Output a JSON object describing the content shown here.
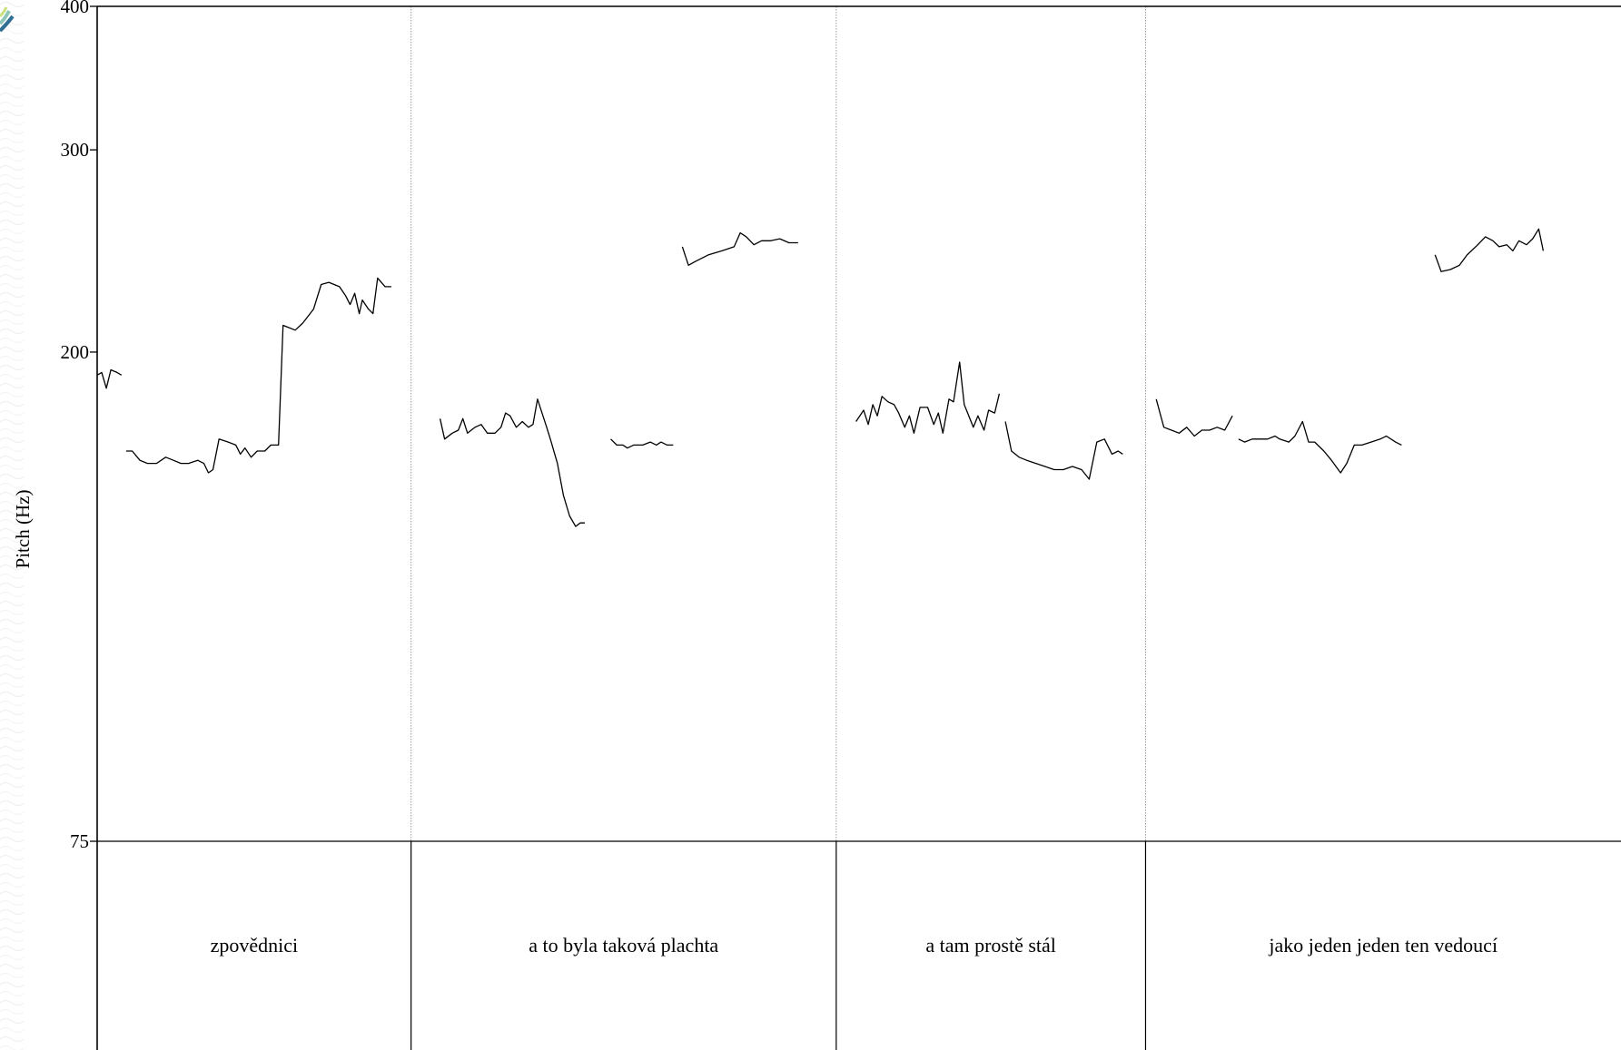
{
  "chart_data": {
    "type": "line",
    "ylabel": "Pitch (Hz)",
    "ylim": [
      75,
      400
    ],
    "yticks": [
      75,
      200,
      300,
      400
    ],
    "ytick_labels": [
      "75",
      "200",
      "300",
      "400"
    ],
    "xlim": [
      0,
      100
    ],
    "intervals": [
      {
        "label": "zpovědnici",
        "start": 0.0,
        "end": 20.6
      },
      {
        "label": "a to byla taková plachta",
        "start": 20.6,
        "end": 48.5
      },
      {
        "label": "a tam prostě stál",
        "start": 48.5,
        "end": 68.8
      },
      {
        "label": "jako jeden jeden ten vedoucí",
        "start": 68.8,
        "end": 100.0
      }
    ],
    "series": [
      {
        "values": [
          [
            0.0,
            191
          ],
          [
            0.3,
            192
          ],
          [
            0.6,
            186
          ],
          [
            0.9,
            193
          ],
          [
            1.3,
            192
          ],
          [
            1.6,
            191
          ]
        ]
      },
      {
        "values": [
          [
            1.9,
            164
          ],
          [
            2.3,
            164
          ],
          [
            2.8,
            161
          ],
          [
            3.3,
            160
          ],
          [
            3.9,
            160
          ],
          [
            4.5,
            162
          ],
          [
            5.0,
            161
          ],
          [
            5.5,
            160
          ],
          [
            6.0,
            160
          ],
          [
            6.6,
            161
          ],
          [
            7.0,
            160
          ],
          [
            7.3,
            157
          ],
          [
            7.6,
            158
          ],
          [
            8.0,
            168
          ],
          [
            8.6,
            167
          ],
          [
            9.1,
            166
          ],
          [
            9.4,
            163
          ],
          [
            9.7,
            165
          ],
          [
            10.1,
            162
          ],
          [
            10.5,
            164
          ],
          [
            11.0,
            164
          ],
          [
            11.4,
            166
          ],
          [
            11.9,
            166
          ],
          [
            12.2,
            211
          ],
          [
            12.6,
            210
          ],
          [
            13.0,
            209
          ],
          [
            13.5,
            212
          ],
          [
            14.2,
            218
          ],
          [
            14.7,
            229
          ],
          [
            15.2,
            230
          ],
          [
            15.9,
            228
          ],
          [
            16.3,
            224
          ],
          [
            16.6,
            220
          ],
          [
            16.9,
            225
          ],
          [
            17.2,
            216
          ],
          [
            17.4,
            222
          ],
          [
            17.8,
            218
          ],
          [
            18.1,
            216
          ],
          [
            18.4,
            232
          ],
          [
            18.9,
            228
          ],
          [
            19.3,
            228
          ]
        ]
      },
      {
        "values": [
          [
            22.5,
            175
          ],
          [
            22.8,
            168
          ],
          [
            23.3,
            170
          ],
          [
            23.7,
            171
          ],
          [
            24.0,
            175
          ],
          [
            24.3,
            170
          ],
          [
            24.8,
            172
          ],
          [
            25.2,
            173
          ],
          [
            25.6,
            170
          ],
          [
            26.1,
            170
          ],
          [
            26.5,
            172
          ],
          [
            26.8,
            177
          ],
          [
            27.1,
            176
          ],
          [
            27.5,
            172
          ],
          [
            27.9,
            174
          ],
          [
            28.3,
            172
          ],
          [
            28.6,
            173
          ],
          [
            28.9,
            182
          ],
          [
            29.5,
            172
          ],
          [
            29.8,
            167
          ],
          [
            30.2,
            160
          ],
          [
            30.6,
            150
          ],
          [
            31.0,
            144
          ],
          [
            31.4,
            141
          ],
          [
            31.7,
            142
          ],
          [
            32.0,
            142
          ]
        ]
      },
      {
        "values": [
          [
            33.7,
            168
          ],
          [
            34.1,
            166
          ],
          [
            34.5,
            166
          ],
          [
            34.8,
            165
          ],
          [
            35.2,
            166
          ],
          [
            35.8,
            166
          ],
          [
            36.3,
            167
          ],
          [
            36.7,
            166
          ],
          [
            37.0,
            167
          ],
          [
            37.4,
            166
          ],
          [
            37.8,
            166
          ]
        ]
      },
      {
        "values": [
          [
            38.4,
            247
          ],
          [
            38.8,
            238
          ],
          [
            39.3,
            240
          ],
          [
            40.1,
            243
          ],
          [
            41.0,
            245
          ],
          [
            41.8,
            247
          ],
          [
            42.2,
            254
          ],
          [
            42.6,
            252
          ],
          [
            43.1,
            248
          ],
          [
            43.6,
            250
          ],
          [
            44.2,
            250
          ],
          [
            44.8,
            251
          ],
          [
            45.4,
            249
          ],
          [
            46.0,
            249
          ]
        ]
      },
      {
        "values": [
          [
            49.8,
            174
          ],
          [
            50.3,
            178
          ],
          [
            50.6,
            173
          ],
          [
            50.9,
            180
          ],
          [
            51.2,
            176
          ],
          [
            51.5,
            183
          ],
          [
            51.9,
            181
          ],
          [
            52.3,
            180
          ],
          [
            52.6,
            177
          ],
          [
            53.0,
            172
          ],
          [
            53.3,
            176
          ],
          [
            53.6,
            170
          ],
          [
            54.0,
            179
          ],
          [
            54.5,
            179
          ],
          [
            54.9,
            173
          ],
          [
            55.2,
            177
          ],
          [
            55.5,
            170
          ],
          [
            55.9,
            182
          ],
          [
            56.2,
            181
          ],
          [
            56.6,
            196
          ],
          [
            56.9,
            180
          ],
          [
            57.2,
            176
          ],
          [
            57.5,
            172
          ],
          [
            57.8,
            176
          ],
          [
            58.2,
            171
          ],
          [
            58.5,
            178
          ],
          [
            58.9,
            177
          ],
          [
            59.2,
            184
          ]
        ]
      },
      {
        "values": [
          [
            59.6,
            174
          ],
          [
            60.0,
            164
          ],
          [
            60.5,
            162
          ],
          [
            61.0,
            161
          ],
          [
            61.6,
            160
          ],
          [
            62.2,
            159
          ],
          [
            62.8,
            158
          ],
          [
            63.4,
            158
          ],
          [
            64.0,
            159
          ],
          [
            64.6,
            158
          ],
          [
            65.1,
            155
          ],
          [
            65.6,
            167
          ],
          [
            66.1,
            168
          ],
          [
            66.6,
            163
          ],
          [
            67.0,
            164
          ],
          [
            67.3,
            163
          ]
        ]
      },
      {
        "values": [
          [
            69.5,
            182
          ],
          [
            70.0,
            172
          ],
          [
            70.5,
            171
          ],
          [
            71.0,
            170
          ],
          [
            71.5,
            172
          ],
          [
            72.0,
            169
          ],
          [
            72.5,
            171
          ],
          [
            73.0,
            171
          ],
          [
            73.5,
            172
          ],
          [
            74.0,
            171
          ],
          [
            74.5,
            176
          ]
        ]
      },
      {
        "values": [
          [
            74.9,
            168
          ],
          [
            75.3,
            167
          ],
          [
            75.8,
            168
          ],
          [
            76.3,
            168
          ],
          [
            76.8,
            168
          ],
          [
            77.3,
            169
          ],
          [
            77.6,
            168
          ],
          [
            78.2,
            167
          ],
          [
            78.6,
            169
          ],
          [
            79.1,
            174
          ],
          [
            79.5,
            167
          ],
          [
            79.9,
            167
          ],
          [
            80.5,
            164
          ],
          [
            81.0,
            161
          ],
          [
            81.6,
            157
          ],
          [
            82.0,
            160
          ],
          [
            82.5,
            166
          ],
          [
            83.0,
            166
          ],
          [
            83.6,
            167
          ],
          [
            84.2,
            168
          ],
          [
            84.6,
            169
          ],
          [
            85.2,
            167
          ],
          [
            85.6,
            166
          ]
        ]
      },
      {
        "values": [
          [
            87.8,
            243
          ],
          [
            88.2,
            235
          ],
          [
            88.8,
            236
          ],
          [
            89.4,
            238
          ],
          [
            89.9,
            243
          ],
          [
            90.6,
            248
          ],
          [
            91.1,
            252
          ],
          [
            91.6,
            250
          ],
          [
            92.0,
            247
          ],
          [
            92.5,
            248
          ],
          [
            92.9,
            245
          ],
          [
            93.3,
            250
          ],
          [
            93.8,
            248
          ],
          [
            94.2,
            251
          ],
          [
            94.6,
            256
          ],
          [
            94.9,
            245
          ]
        ]
      }
    ]
  }
}
